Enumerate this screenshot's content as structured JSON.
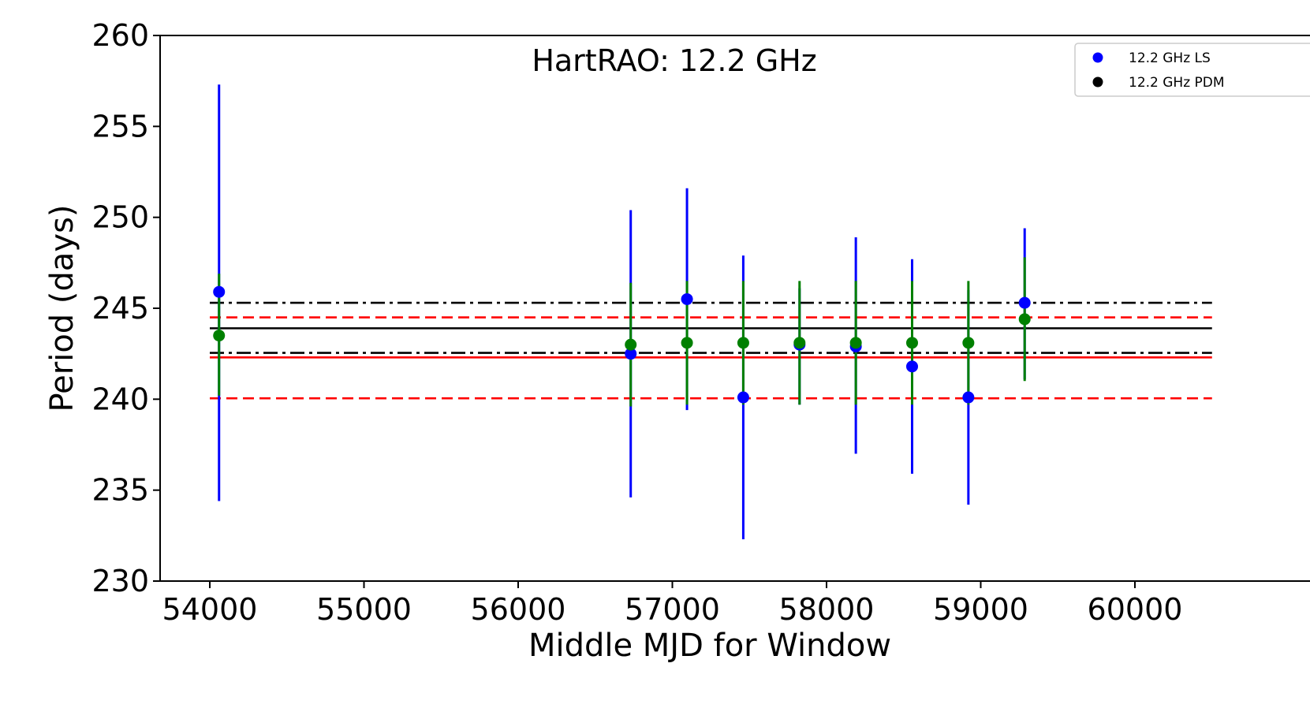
{
  "chart_data": {
    "type": "scatter",
    "title": "HartRAO: 12.2 GHz",
    "xlabel": "Middle MJD for Window",
    "ylabel": "Period (days)",
    "xlim": [
      53650,
      60600
    ],
    "ylim": [
      230,
      260
    ],
    "xticks": [
      54000,
      55000,
      56000,
      57000,
      58000,
      59000,
      60000
    ],
    "yticks": [
      230,
      235,
      240,
      245,
      250,
      255,
      260
    ],
    "grid": false,
    "legend_position": "top-right",
    "series": [
      {
        "name": "12.2 GHz LS",
        "color": "#0000ff",
        "points": [
          {
            "x": 54060,
            "y": 245.9,
            "err_low": 234.4,
            "err_high": 257.3
          },
          {
            "x": 56730,
            "y": 242.5,
            "err_low": 234.6,
            "err_high": 250.4
          },
          {
            "x": 57095,
            "y": 245.5,
            "err_low": 239.4,
            "err_high": 251.6
          },
          {
            "x": 57460,
            "y": 240.1,
            "err_low": 232.3,
            "err_high": 247.9
          },
          {
            "x": 57825,
            "y": 243.0,
            "err_low": 239.7,
            "err_high": 246.1
          },
          {
            "x": 58190,
            "y": 242.9,
            "err_low": 237.0,
            "err_high": 248.9
          },
          {
            "x": 58555,
            "y": 241.8,
            "err_low": 235.9,
            "err_high": 247.7
          },
          {
            "x": 58920,
            "y": 240.1,
            "err_low": 234.2,
            "err_high": 246.0
          },
          {
            "x": 59285,
            "y": 245.3,
            "err_low": 241.1,
            "err_high": 249.4
          }
        ]
      },
      {
        "name": "12.2 GHz PDM",
        "color": "#008000",
        "points": [
          {
            "x": 54060,
            "y": 243.5,
            "err_low": 240.2,
            "err_high": 246.9
          },
          {
            "x": 56730,
            "y": 243.0,
            "err_low": 239.6,
            "err_high": 246.4
          },
          {
            "x": 57095,
            "y": 243.1,
            "err_low": 239.7,
            "err_high": 246.5
          },
          {
            "x": 57460,
            "y": 243.1,
            "err_low": 239.7,
            "err_high": 246.5
          },
          {
            "x": 57825,
            "y": 243.1,
            "err_low": 239.7,
            "err_high": 246.5
          },
          {
            "x": 58190,
            "y": 243.1,
            "err_low": 239.7,
            "err_high": 246.5
          },
          {
            "x": 58555,
            "y": 243.1,
            "err_low": 239.7,
            "err_high": 246.5
          },
          {
            "x": 58920,
            "y": 243.1,
            "err_low": 239.7,
            "err_high": 246.5
          },
          {
            "x": 59285,
            "y": 244.4,
            "err_low": 241.0,
            "err_high": 247.8
          }
        ]
      }
    ],
    "reference_lines": [
      {
        "y": 243.9,
        "color": "#000000",
        "style": "solid"
      },
      {
        "y": 245.3,
        "color": "#000000",
        "style": "dashdot"
      },
      {
        "y": 242.55,
        "color": "#000000",
        "style": "dashdot"
      },
      {
        "y": 242.3,
        "color": "#ff0000",
        "style": "solid"
      },
      {
        "y": 244.5,
        "color": "#ff0000",
        "style": "dashed"
      },
      {
        "y": 240.05,
        "color": "#ff0000",
        "style": "dashed"
      }
    ],
    "reference_line_range": [
      54000,
      60500
    ],
    "legend": [
      {
        "label": "12.2 GHz LS",
        "marker_color": "#0000ff"
      },
      {
        "label": "12.2 GHz PDM",
        "marker_color": "#000000"
      }
    ]
  }
}
